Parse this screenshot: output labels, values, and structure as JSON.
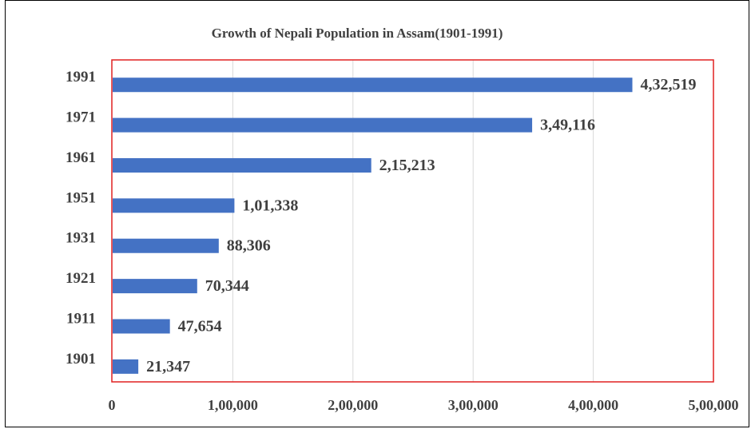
{
  "chart_data": {
    "type": "bar",
    "orientation": "horizontal",
    "title": "Growth of Nepali Population in Assam(1901-1991)",
    "categories": [
      "1901",
      "1911",
      "1921",
      "1931",
      "1951",
      "1961",
      "1971",
      "1991"
    ],
    "values": [
      21347,
      47654,
      70344,
      88306,
      101338,
      215213,
      349116,
      432519
    ],
    "value_labels": [
      "21,347",
      "47,654",
      "70,344",
      "88,306",
      "1,01,338",
      "2,15,213",
      "3,49,116",
      "4,32,519"
    ],
    "x_ticks": [
      0,
      100000,
      200000,
      300000,
      400000,
      500000
    ],
    "x_tick_labels": [
      "0",
      "1,00,000",
      "2,00,000",
      "3,00,000",
      "4,00,000",
      "5,00,000"
    ],
    "xlim": [
      0,
      500000
    ],
    "grid": "vertical",
    "bar_color": "#4472C4",
    "plot_border_color": "#E02020",
    "xlabel": "",
    "ylabel": ""
  }
}
